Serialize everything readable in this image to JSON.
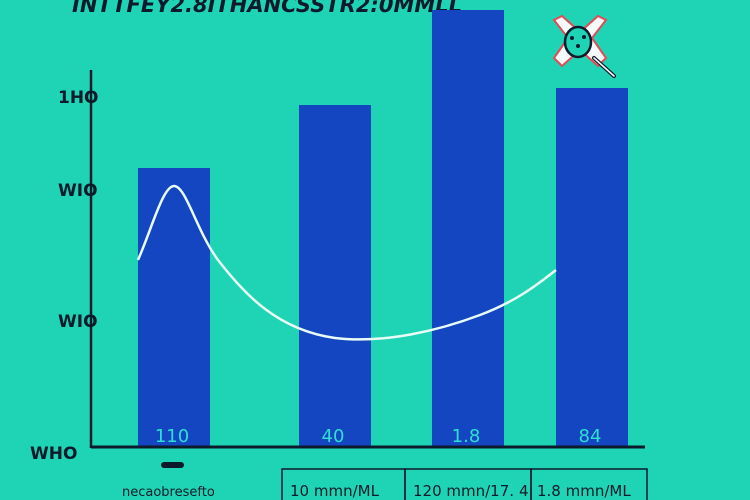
{
  "chart_data": {
    "type": "bar",
    "title": "INTTFEY2.8ITHANCSSTR2:0MMLL",
    "categories": [
      "necaobresefto",
      "10 mmn/ML",
      "120 mmn/17.",
      "1.8 mmn/ML"
    ],
    "values": [
      110,
      40,
      1.8,
      84
    ],
    "data_labels": [
      "110",
      "40",
      "1.8",
      "84"
    ],
    "y_tick_labels": [
      "WHO",
      "WIO",
      "WIO",
      "1HO"
    ],
    "category_extra_mark": "4",
    "overlay_line": true,
    "legend": "none",
    "grid": false
  },
  "colors": {
    "background": "#1fd4b4",
    "bar": "#1446c2",
    "axis": "#0d1a2b",
    "line": "#e8fbf6",
    "label": "#2ee0d0"
  },
  "icons": {
    "corner_icon": "microbe-petri-icon"
  }
}
